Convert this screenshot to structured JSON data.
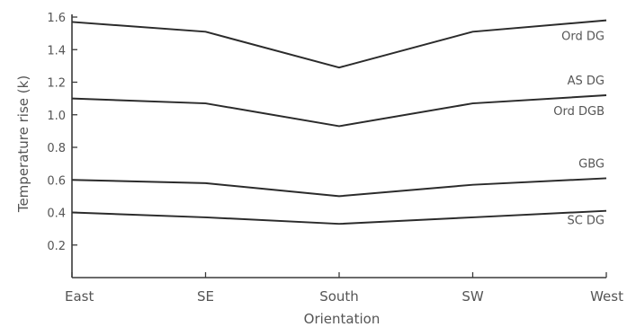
{
  "chart_data": {
    "type": "line",
    "xlabel": "Orientation",
    "ylabel": "Temperature rise (k)",
    "categories": [
      "East",
      "SE",
      "South",
      "SW",
      "West"
    ],
    "ylim": [
      0,
      1.6
    ],
    "yticks": [
      "0.2",
      "0.4",
      "0.6",
      "0.8",
      "1.0",
      "1.2",
      "1.4",
      "1.6"
    ],
    "grid": false,
    "series": [
      {
        "name": "Ord DG",
        "values": [
          1.57,
          1.51,
          1.29,
          1.51,
          1.58
        ]
      },
      {
        "name": "AS DG",
        "values": [
          1.1,
          1.07,
          0.93,
          1.07,
          1.12
        ]
      },
      {
        "name": "Ord DGB",
        "values": [
          1.1,
          1.07,
          0.93,
          1.07,
          1.12
        ]
      },
      {
        "name": "GBG",
        "values": [
          0.6,
          0.58,
          0.5,
          0.57,
          0.61
        ]
      },
      {
        "name": "SC DG",
        "values": [
          0.4,
          0.37,
          0.33,
          0.37,
          0.41
        ]
      }
    ]
  }
}
